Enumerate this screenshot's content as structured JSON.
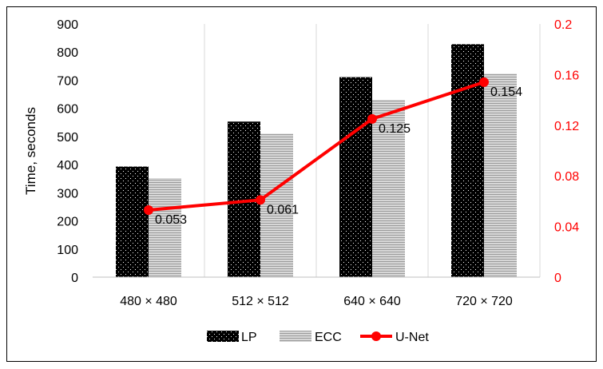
{
  "chart_data": {
    "type": "bar",
    "categories": [
      "480 × 480",
      "512 × 512",
      "640 × 640",
      "720 × 720"
    ],
    "series": [
      {
        "name": "LP",
        "type": "bar",
        "axis": "left",
        "pattern": "black-dotted",
        "values": [
          393,
          553,
          711,
          828
        ]
      },
      {
        "name": "ECC",
        "type": "bar",
        "axis": "left",
        "pattern": "gray-striped",
        "values": [
          352,
          510,
          630,
          723
        ]
      },
      {
        "name": "U-Net",
        "type": "line",
        "axis": "right",
        "color": "#ff0000",
        "values": [
          0.053,
          0.061,
          0.125,
          0.154
        ],
        "data_labels": [
          "0.053",
          "0.061",
          "0.125",
          "0.154"
        ]
      }
    ],
    "ylabel": "Time,  seconds",
    "xlabel": "",
    "ylim": [
      0,
      900
    ],
    "yticks": [
      "0",
      "100",
      "200",
      "300",
      "400",
      "500",
      "600",
      "700",
      "800",
      "900"
    ],
    "y2lim": [
      0,
      0.2
    ],
    "y2ticks": [
      "0",
      "0.04",
      "0.08",
      "0.12",
      "0.16",
      "0.2"
    ],
    "y2_color": "#ff0000",
    "grid": "vertical",
    "legend": "bottom"
  }
}
